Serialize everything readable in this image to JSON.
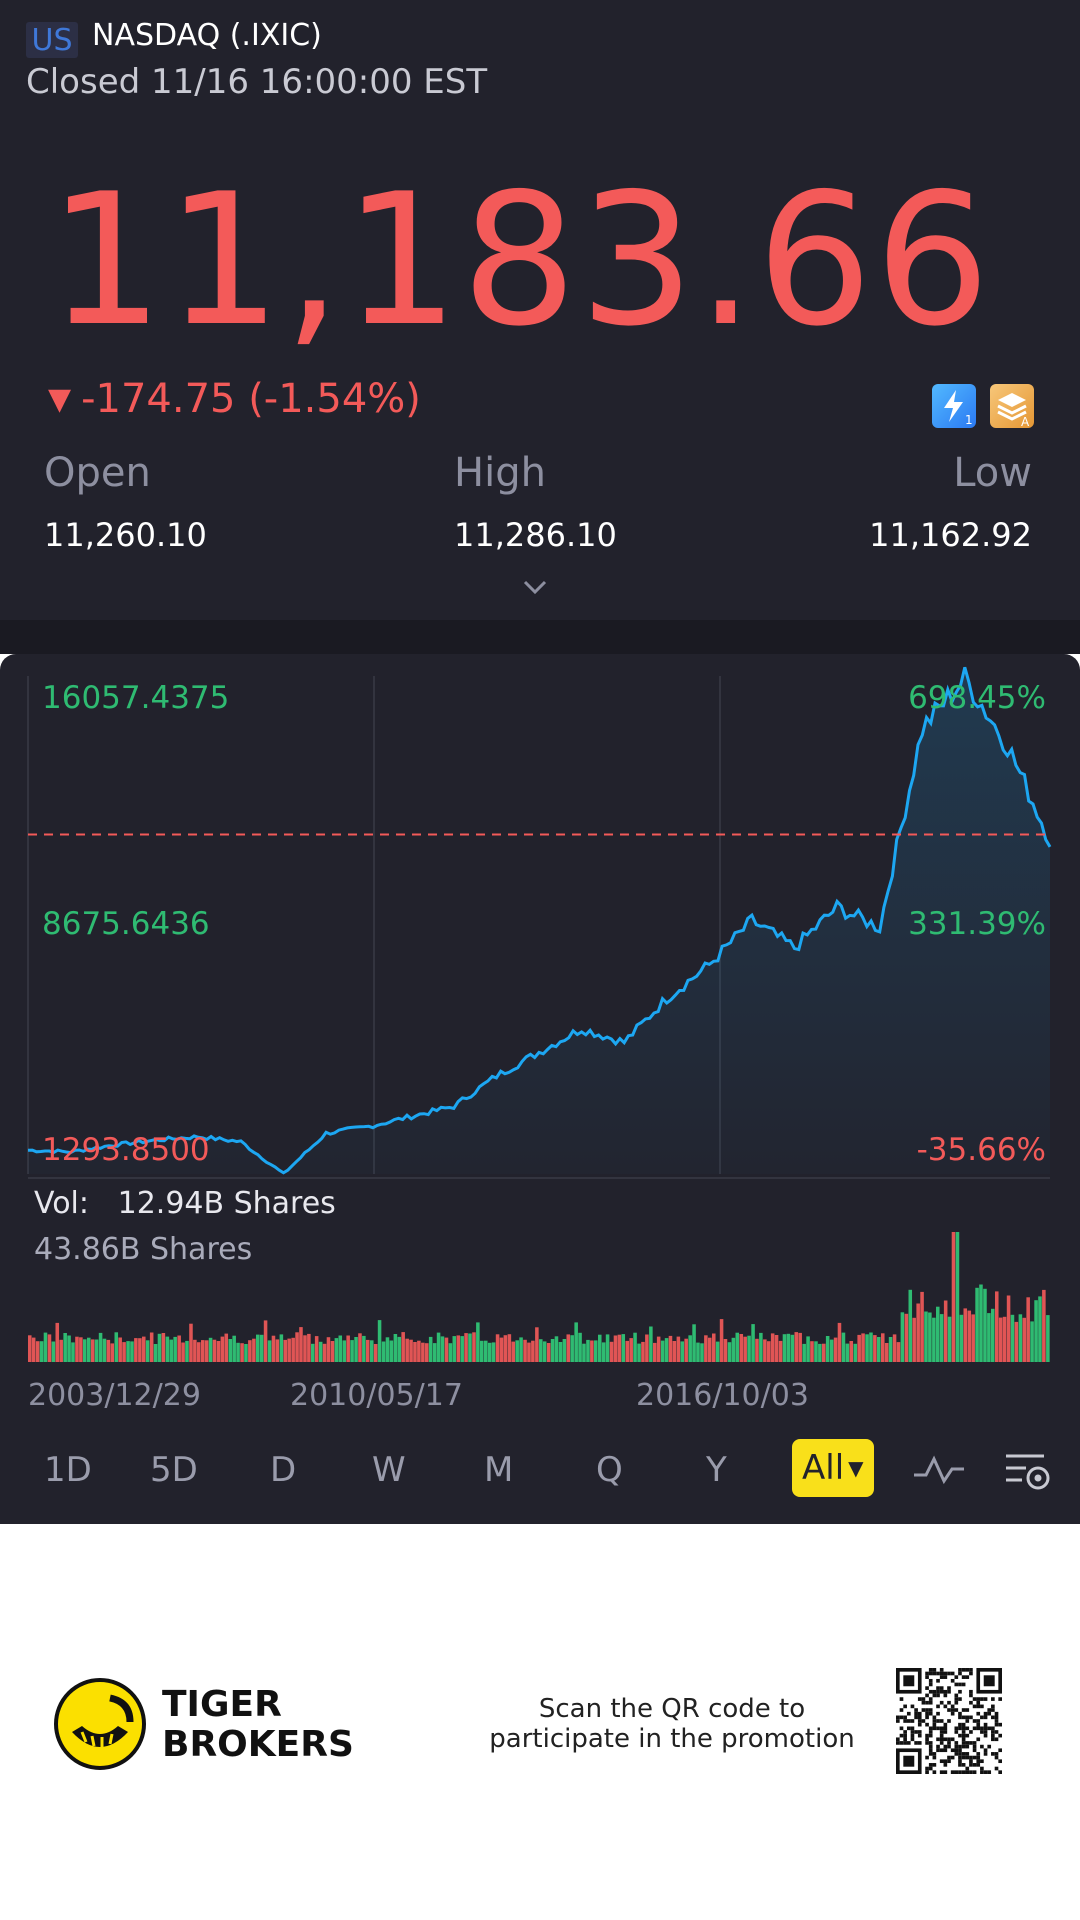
{
  "header": {
    "market_badge": "US",
    "index_name": "NASDAQ (.IXIC)",
    "status": "Closed 11/16 16:00:00 EST"
  },
  "quote": {
    "price": "11,183.66",
    "change": "-174.75 (-1.54%)",
    "open_label": "Open",
    "open": "11,260.10",
    "high_label": "High",
    "high": "11,286.10",
    "low_label": "Low",
    "low": "11,162.92"
  },
  "chart_data": {
    "type": "line",
    "x_ticks": [
      "2003/12/29",
      "2010/05/17",
      "2016/10/03"
    ],
    "y_left_labels": [
      "16057.4375",
      "8675.6436",
      "1293.8500"
    ],
    "y_right_labels": [
      "698.45%",
      "331.39%",
      "-35.66%"
    ],
    "ylim": [
      1293.85,
      16057.4375
    ],
    "reference_price": 11358.41,
    "series": [
      {
        "values": [
          2000,
          1950,
          2150,
          2300,
          2400,
          2250,
          1300,
          2500,
          2700,
          3000,
          3300,
          4200,
          4900,
          5600,
          5200,
          6500,
          7500,
          8800,
          8000,
          9200,
          8600,
          14500,
          16000,
          14000,
          11200
        ]
      }
    ],
    "volume_labels": {
      "current": "12.94B Shares",
      "max": "43.86B Shares",
      "prefix": "Vol:"
    }
  },
  "timeframes": [
    "1D",
    "5D",
    "D",
    "W",
    "M",
    "Q",
    "Y",
    "All"
  ],
  "footer": {
    "brand_line1": "TIGER",
    "brand_line2": "BROKERS",
    "promo_line1": "Scan the QR code to",
    "promo_line2": "participate in the promotion"
  },
  "colors": {
    "up": "#2fbb72",
    "down": "#f35a59",
    "line": "#1da7f2",
    "accent": "#f9e01a"
  }
}
